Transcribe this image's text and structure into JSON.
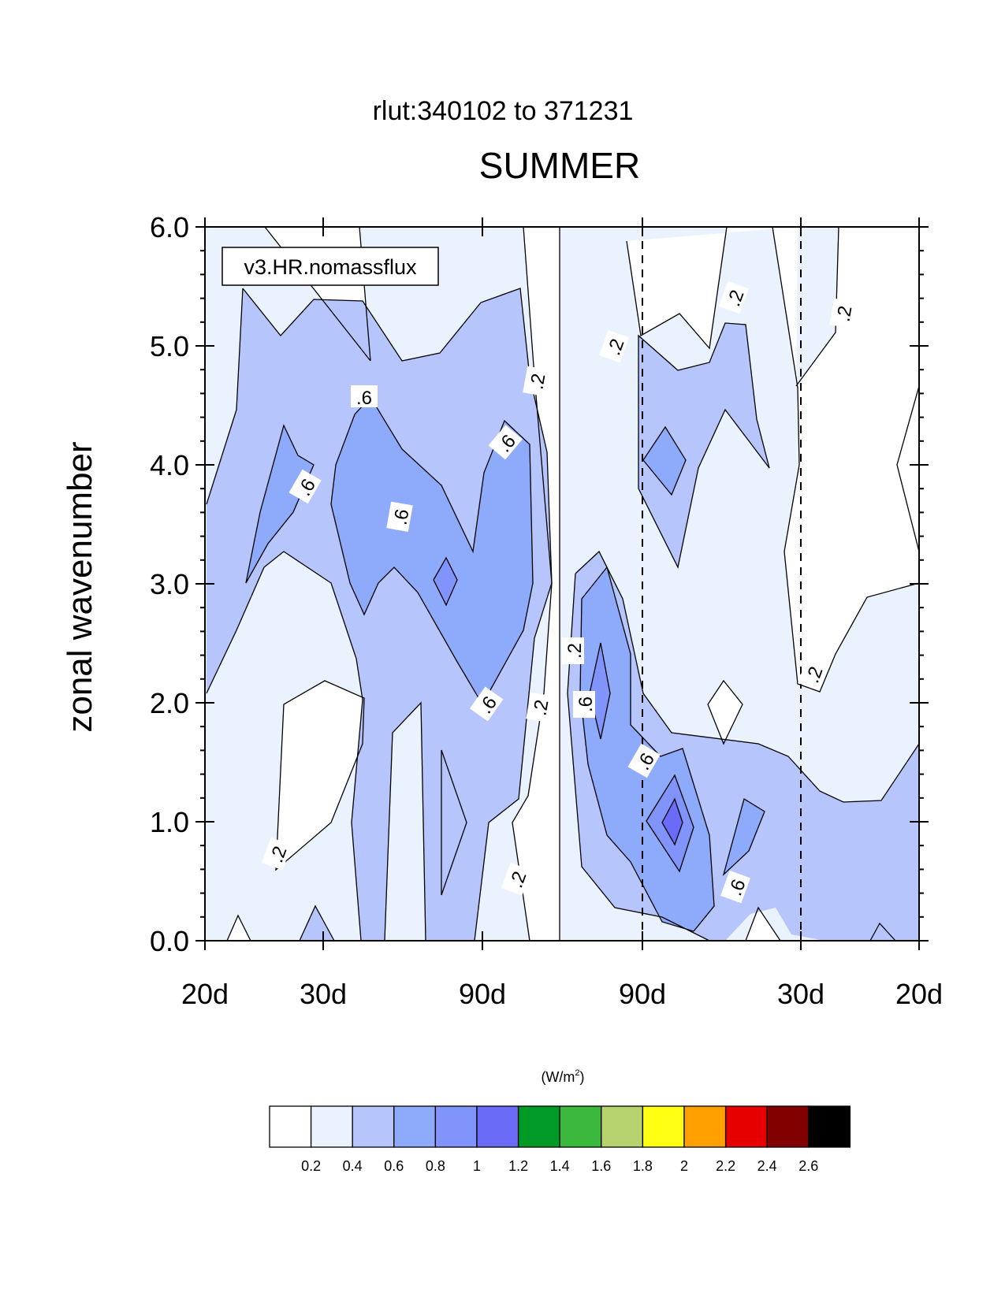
{
  "chart_data": {
    "type": "heatmap",
    "subtitle": "rlut:340102 to 371231",
    "title": "SUMMER",
    "ylabel": "zonal wavenumber",
    "legend_box": "v3.HR.nomassflux",
    "units_label": "(W/m",
    "units_sup": "2",
    "units_close": ")",
    "ylim": [
      0,
      6
    ],
    "y_ticks": [
      "0.0",
      "1.0",
      "2.0",
      "3.0",
      "4.0",
      "5.0",
      "6.0"
    ],
    "x_ticks": [
      "20d",
      "30d",
      "90d",
      "90d",
      "30d",
      "20d"
    ],
    "contour_labels": [
      ".2",
      ".6"
    ],
    "colorbar": {
      "levels": [
        "0.2",
        "0.4",
        "0.6",
        "0.8",
        "1",
        "1.2",
        "1.4",
        "1.6",
        "1.8",
        "2",
        "2.2",
        "2.4",
        "2.6"
      ],
      "colors": [
        "#ffffff",
        "#eaf3fd",
        "#b6c5fb",
        "#8eaafb",
        "#8094fb",
        "#6a6cf7",
        "#009b27",
        "#3cb93c",
        "#b5d26f",
        "#ffff14",
        "#ffa000",
        "#e60000",
        "#820000",
        "#000000"
      ]
    }
  }
}
